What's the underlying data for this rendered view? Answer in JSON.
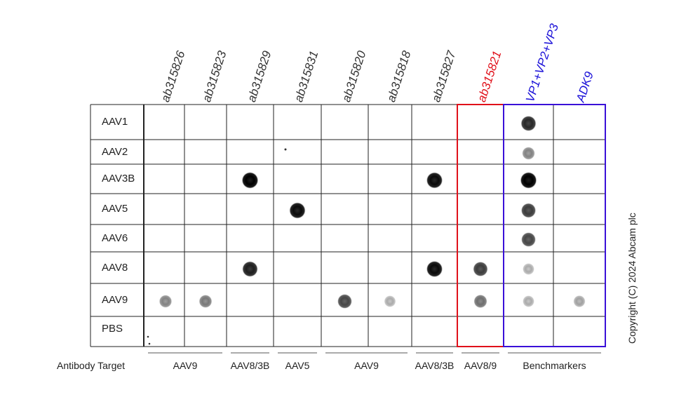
{
  "columns": [
    {
      "label": "ab315826",
      "color": "#333333"
    },
    {
      "label": "ab315823",
      "color": "#333333"
    },
    {
      "label": "ab315829",
      "color": "#333333"
    },
    {
      "label": "ab315831",
      "color": "#333333"
    },
    {
      "label": "ab315820",
      "color": "#333333"
    },
    {
      "label": "ab315818",
      "color": "#333333"
    },
    {
      "label": "ab315827",
      "color": "#333333"
    },
    {
      "label": "ab315821",
      "color": "#e0101a"
    },
    {
      "label": "VP1+VP2+VP3",
      "color": "#1a10d8"
    },
    {
      "label": "ADK9",
      "color": "#1a10d8"
    }
  ],
  "rows": [
    "AAV1",
    "AAV2",
    "AAV3B",
    "AAV5",
    "AAV6",
    "AAV8",
    "AAV9",
    "PBS"
  ],
  "antibody_target": {
    "title": "Antibody Target",
    "groups": [
      "AAV9",
      "AAV8/3B",
      "AAV5",
      "AAV9",
      "AAV8/3B",
      "AAV8/9",
      "Benchmarkers"
    ]
  },
  "copyright": "Copyright (C) 2024 Abcam plc",
  "colors": {
    "highlight_red": "#e0101a",
    "highlight_blue": "#3a10d8"
  },
  "dots": [
    {
      "row": "AAV1",
      "column": "VP1+VP2+VP3",
      "intensity": 0.8
    },
    {
      "row": "AAV2",
      "column": "VP1+VP2+VP3",
      "intensity": 0.35
    },
    {
      "row": "AAV3B",
      "column": "ab315829",
      "intensity": 1.0
    },
    {
      "row": "AAV3B",
      "column": "ab315827",
      "intensity": 0.95
    },
    {
      "row": "AAV3B",
      "column": "VP1+VP2+VP3",
      "intensity": 1.0
    },
    {
      "row": "AAV5",
      "column": "ab315831",
      "intensity": 0.95
    },
    {
      "row": "AAV5",
      "column": "VP1+VP2+VP3",
      "intensity": 0.7
    },
    {
      "row": "AAV6",
      "column": "VP1+VP2+VP3",
      "intensity": 0.65
    },
    {
      "row": "AAV8",
      "column": "ab315829",
      "intensity": 0.85
    },
    {
      "row": "AAV8",
      "column": "ab315827",
      "intensity": 0.95
    },
    {
      "row": "AAV8",
      "column": "ab315821",
      "intensity": 0.7
    },
    {
      "row": "AAV8",
      "column": "VP1+VP2+VP3",
      "intensity": 0.15
    },
    {
      "row": "AAV9",
      "column": "ab315826",
      "intensity": 0.35
    },
    {
      "row": "AAV9",
      "column": "ab315823",
      "intensity": 0.4
    },
    {
      "row": "AAV9",
      "column": "ab315820",
      "intensity": 0.65
    },
    {
      "row": "AAV9",
      "column": "ab315818",
      "intensity": 0.15
    },
    {
      "row": "AAV9",
      "column": "ab315821",
      "intensity": 0.45
    },
    {
      "row": "AAV9",
      "column": "VP1+VP2+VP3",
      "intensity": 0.15
    },
    {
      "row": "AAV9",
      "column": "ADK9",
      "intensity": 0.2
    }
  ]
}
